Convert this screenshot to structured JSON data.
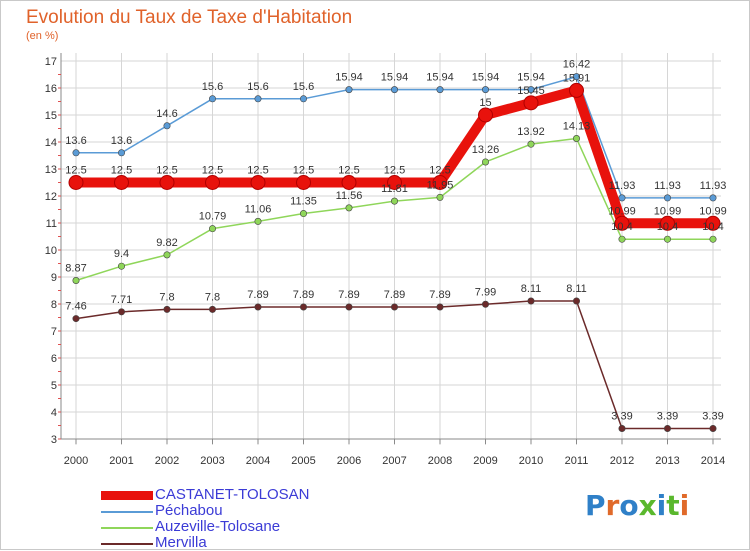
{
  "title": "Evolution du Taux de Taxe d'Habitation",
  "subtitle": "(en %)",
  "logo": "Proxiti",
  "colors": {
    "title": "#e0622a",
    "grid": "#d6d6d6",
    "axis": "#8a8a8a",
    "legend_text": "#3b3bd6",
    "logo": [
      "#2f80c8",
      "#e06a2a",
      "#2f80c8",
      "#5ab82d",
      "#2f80c8",
      "#5ab82d",
      "#e06a2a"
    ]
  },
  "chart_data": {
    "type": "line",
    "title": "Evolution du Taux de Taxe d'Habitation",
    "ylabel": "(en %)",
    "xlabel": "",
    "x": [
      "2000",
      "2001",
      "2002",
      "2003",
      "2004",
      "2005",
      "2006",
      "2007",
      "2008",
      "2009",
      "2010",
      "2011",
      "2012",
      "2013",
      "2014"
    ],
    "ylim": [
      3,
      17
    ],
    "yticks": [
      3,
      4,
      5,
      6,
      7,
      8,
      9,
      10,
      11,
      12,
      13,
      14,
      15,
      16,
      17
    ],
    "grid": true,
    "legend": "bottom-left",
    "series": [
      {
        "name": "CASTANET-TOLOSAN",
        "color": "#e8120c",
        "bold": true,
        "values": [
          12.5,
          12.5,
          12.5,
          12.5,
          12.5,
          12.5,
          12.5,
          12.5,
          12.5,
          15,
          15.45,
          15.91,
          10.99,
          10.99,
          10.99
        ],
        "labels": [
          "12.5",
          "12.5",
          "12.5",
          "12.5",
          "12.5",
          "12.5",
          "12.5",
          "12.5",
          "12.5",
          "15",
          "15.45",
          "15.91",
          "10.99",
          "10.99",
          "10.99"
        ]
      },
      {
        "name": "Péchabou",
        "color": "#5a9bd6",
        "bold": false,
        "values": [
          13.6,
          13.6,
          14.6,
          15.6,
          15.6,
          15.6,
          15.94,
          15.94,
          15.94,
          15.94,
          15.94,
          16.42,
          11.93,
          11.93,
          11.93
        ],
        "labels": [
          "13.6",
          "13.6",
          "14.6",
          "15.6",
          "15.6",
          "15.6",
          "15.94",
          "15.94",
          "15.94",
          "15.94",
          "15.94",
          "16.42",
          "11.93",
          "11.93",
          "11.93"
        ]
      },
      {
        "name": "Auzeville-Tolosane",
        "color": "#8fd65a",
        "bold": false,
        "values": [
          8.87,
          9.4,
          9.82,
          10.79,
          11.06,
          11.35,
          11.56,
          11.81,
          11.95,
          13.26,
          13.92,
          14.13,
          10.4,
          10.4,
          10.4
        ],
        "labels": [
          "8.87",
          "9.4",
          "9.82",
          "10.79",
          "11.06",
          "11.35",
          "11.56",
          "11.81",
          "11.95",
          "13.26",
          "13.92",
          "14.13",
          "10.4",
          "10.4",
          "10.4"
        ]
      },
      {
        "name": "Mervilla",
        "color": "#6b2a2a",
        "bold": false,
        "values": [
          7.46,
          7.71,
          7.8,
          7.8,
          7.89,
          7.89,
          7.89,
          7.89,
          7.89,
          7.99,
          8.11,
          8.11,
          3.39,
          3.39,
          3.39
        ],
        "labels": [
          "7.46",
          "7.71",
          "7.8",
          "7.8",
          "7.89",
          "7.89",
          "7.89",
          "7.89",
          "7.89",
          "7.99",
          "8.11",
          "8.11",
          "3.39",
          "3.39",
          "3.39"
        ]
      }
    ]
  }
}
